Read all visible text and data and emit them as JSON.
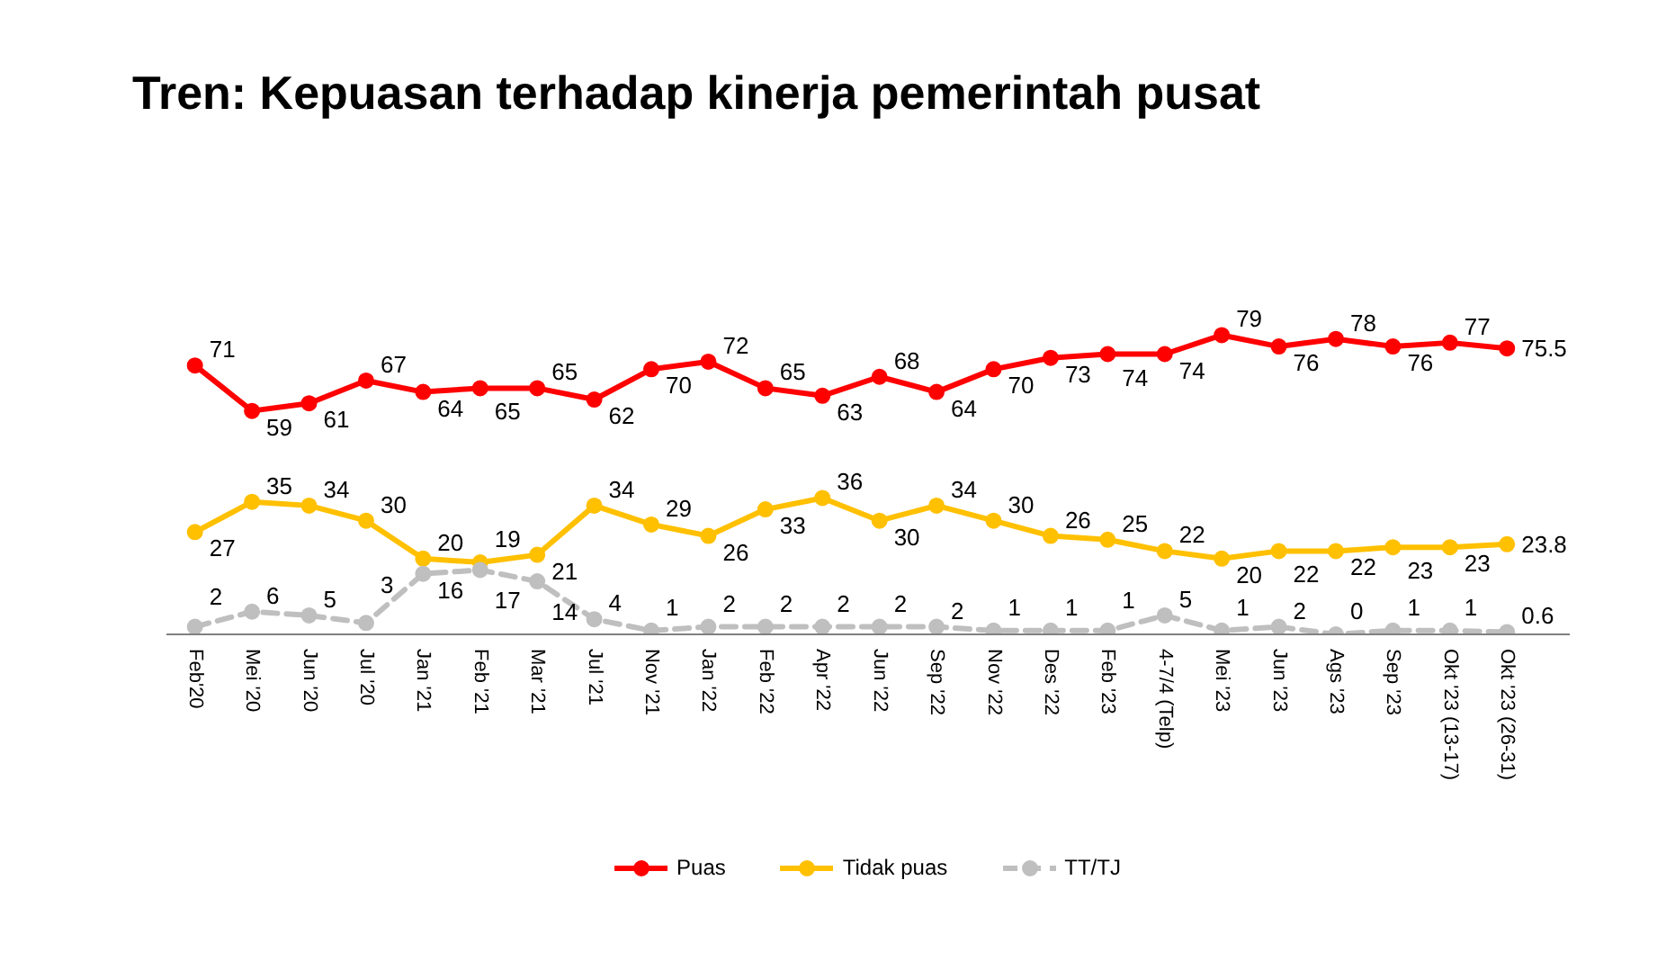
{
  "chart_data": {
    "type": "line",
    "title": "Tren: Kepuasan terhadap kinerja pemerintah pusat",
    "categories": [
      "Feb'20",
      "Mei '20",
      "Jun '20",
      "Jul '20",
      "Jan '21",
      "Feb '21",
      "Mar '21",
      "Jul '21",
      "Nov '21",
      "Jan '22",
      "Feb '22",
      "Apr '22",
      "Jun '22",
      "Sep '22",
      "Nov '22",
      "Des '22",
      "Feb '23",
      "4-7/4 (Telp)",
      "Mei '23",
      "Jun '23",
      "Ags '23",
      "Sep '23",
      "Okt '23 (13-17)",
      "Okt '23 (26-31)"
    ],
    "series": [
      {
        "name": "Puas",
        "color": "#ff0000",
        "values": [
          71,
          59,
          61,
          67,
          64,
          65,
          65,
          62,
          70,
          72,
          65,
          63,
          68,
          64,
          70,
          73,
          74,
          74,
          79,
          76,
          78,
          76,
          77,
          75.5
        ]
      },
      {
        "name": "Tidak puas",
        "color": "#ffc000",
        "values": [
          27,
          35,
          34,
          30,
          20,
          19,
          21,
          34,
          29,
          26,
          33,
          36,
          30,
          34,
          30,
          26,
          25,
          22,
          20,
          22,
          22,
          23,
          23,
          23.8
        ]
      },
      {
        "name": "TT/TJ",
        "color": "#bfbfbf",
        "line_style": "dashed",
        "values": [
          2,
          6,
          5,
          3,
          16,
          17,
          14,
          4,
          1,
          2,
          2,
          2,
          2,
          2,
          1,
          1,
          1,
          5,
          1,
          2,
          0,
          1,
          1,
          0.6
        ]
      }
    ],
    "data_labels": true,
    "marker": "circle",
    "line_style": "solid",
    "legend": "bottom",
    "grid": false,
    "tick_labels": "x"
  }
}
